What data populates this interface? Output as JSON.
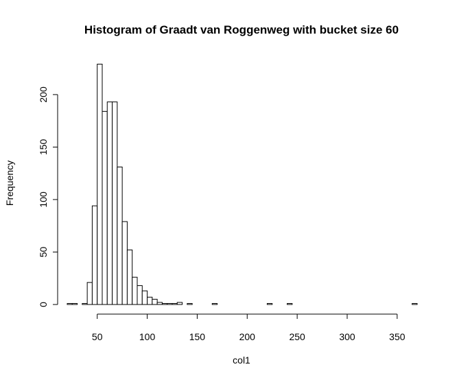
{
  "chart_data": {
    "type": "bar",
    "title": "Histogram of Graadt van Roggenweg with bucket size 60",
    "xlabel": "col1",
    "ylabel": "Frequency",
    "xlim": [
      20,
      370
    ],
    "ylim": [
      0,
      230
    ],
    "xticks": [
      50,
      100,
      150,
      200,
      250,
      300,
      350
    ],
    "yticks": [
      0,
      50,
      100,
      150,
      200
    ],
    "bin_width": 5,
    "bins": [
      {
        "start": 20,
        "end": 25,
        "count": 1
      },
      {
        "start": 25,
        "end": 30,
        "count": 1
      },
      {
        "start": 35,
        "end": 40,
        "count": 1
      },
      {
        "start": 40,
        "end": 45,
        "count": 21
      },
      {
        "start": 45,
        "end": 50,
        "count": 94
      },
      {
        "start": 50,
        "end": 55,
        "count": 229
      },
      {
        "start": 55,
        "end": 60,
        "count": 184
      },
      {
        "start": 60,
        "end": 65,
        "count": 193
      },
      {
        "start": 65,
        "end": 70,
        "count": 193
      },
      {
        "start": 70,
        "end": 75,
        "count": 131
      },
      {
        "start": 75,
        "end": 80,
        "count": 79
      },
      {
        "start": 80,
        "end": 85,
        "count": 52
      },
      {
        "start": 85,
        "end": 90,
        "count": 26
      },
      {
        "start": 90,
        "end": 95,
        "count": 18
      },
      {
        "start": 95,
        "end": 100,
        "count": 13
      },
      {
        "start": 100,
        "end": 105,
        "count": 7
      },
      {
        "start": 105,
        "end": 110,
        "count": 5
      },
      {
        "start": 110,
        "end": 115,
        "count": 2
      },
      {
        "start": 115,
        "end": 120,
        "count": 1
      },
      {
        "start": 120,
        "end": 125,
        "count": 1
      },
      {
        "start": 125,
        "end": 130,
        "count": 1
      },
      {
        "start": 130,
        "end": 135,
        "count": 2
      },
      {
        "start": 135,
        "end": 140,
        "count": 0
      },
      {
        "start": 140,
        "end": 145,
        "count": 1
      },
      {
        "start": 165,
        "end": 170,
        "count": 1
      },
      {
        "start": 220,
        "end": 225,
        "count": 1
      },
      {
        "start": 240,
        "end": 245,
        "count": 1
      },
      {
        "start": 365,
        "end": 370,
        "count": 1
      }
    ],
    "grid": false,
    "legend": "none"
  }
}
